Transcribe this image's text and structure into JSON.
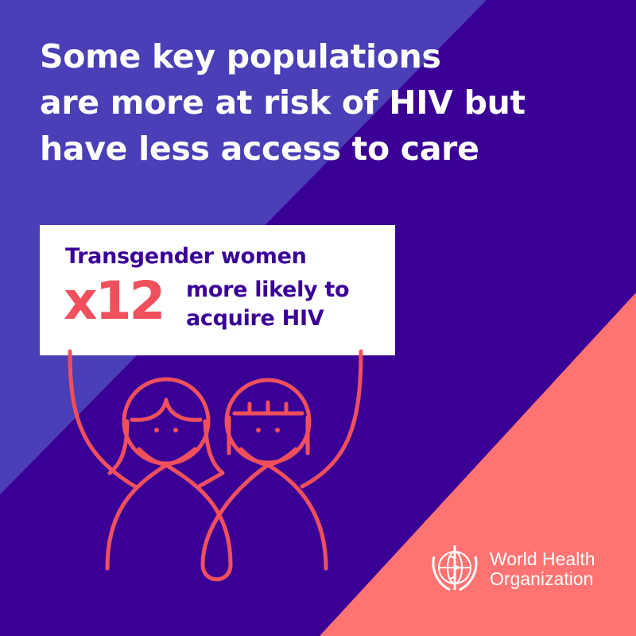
{
  "headline": {
    "lines": [
      "Some key populations",
      "are more at risk of HIV but",
      "have less access to care"
    ]
  },
  "card": {
    "population": "Transgender women",
    "multiplier": "x12",
    "line1": "more likely to",
    "line2": "acquire HIV"
  },
  "logo": {
    "line1": "World Health",
    "line2": "Organization",
    "icon": "who-emblem-icon"
  },
  "colors": {
    "light_purple": "#4a3fb6",
    "dark_purple": "#3a0096",
    "coral": "#ff7472",
    "figure_line": "#f0505c"
  }
}
